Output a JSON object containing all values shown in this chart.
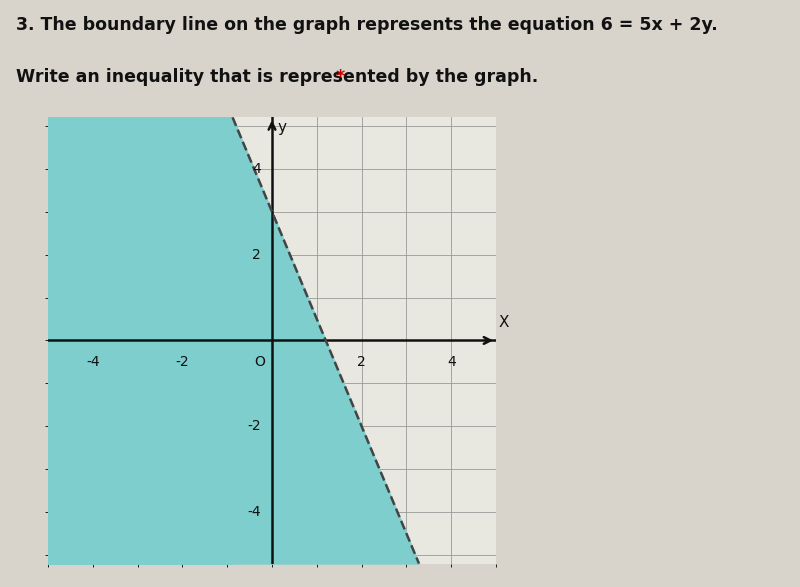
{
  "title_line1": "3. The boundary line on the graph represents the equation 6 = 5x + 2y.",
  "title_line2": "Write an inequality that is represented by the graph.",
  "asterisk": " *",
  "title_fontsize": 12.5,
  "asterisk_color": "#cc0000",
  "background_color": "#d8d4cc",
  "graph_facecolor": "#e8e8e0",
  "shade_color": "#7ecece",
  "shade_alpha": 1.0,
  "line_color": "#444444",
  "line_style": "--",
  "line_width": 1.8,
  "grid_color": "#999999",
  "grid_linewidth": 0.6,
  "axis_color": "#111111",
  "xlim": [
    -5,
    5
  ],
  "ylim": [
    -5.2,
    5.2
  ],
  "xticks": [
    -4,
    -2,
    0,
    2,
    4
  ],
  "yticks": [
    -4,
    -2,
    2,
    4
  ],
  "tick_labels_x": [
    "-4",
    "-2",
    "O",
    "2",
    "4"
  ],
  "tick_labels_y": [
    "-4",
    "-2",
    "2",
    "4"
  ],
  "xlabel": "X",
  "ylabel": "y",
  "equation_slope": -2.5,
  "equation_intercept": 3.0
}
